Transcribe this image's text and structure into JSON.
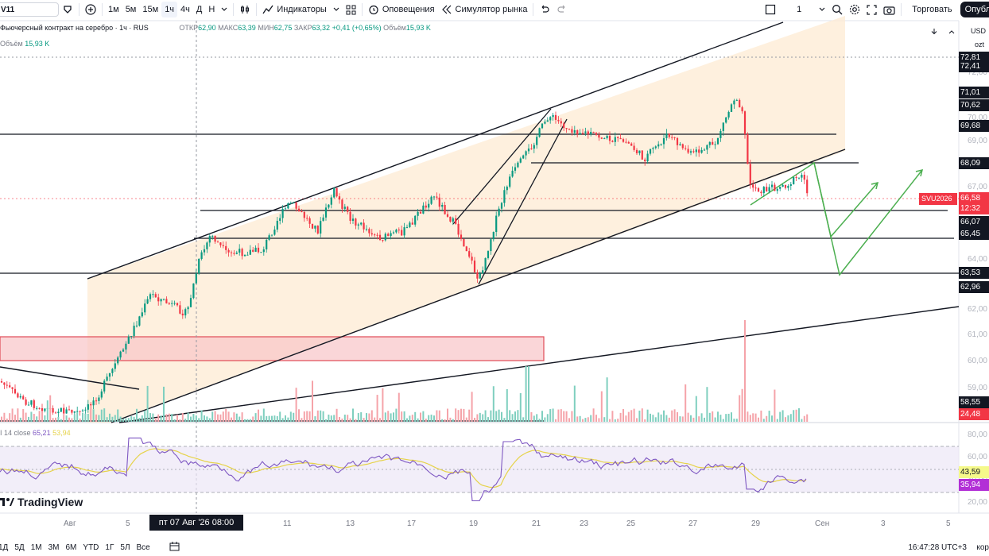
{
  "toolbar": {
    "symbol": "V11",
    "timeframes": [
      "1м",
      "5м",
      "15м",
      "1ч",
      "4ч",
      "Д",
      "Н"
    ],
    "active_timeframe": "1ч",
    "indicators_label": "Индикаторы",
    "alerts_label": "Оповещения",
    "simulator_label": "Симулятор рынка",
    "layout_count": "1",
    "trade_label": "Торговать",
    "publish_label": "Опубл"
  },
  "legend": {
    "title": "Фьючерсный контракт на серебро · 1ч · RUS",
    "open_label": "ОТКР",
    "open": "62,90",
    "high_label": "МАКС",
    "high": "63,39",
    "low_label": "МИН",
    "low": "62,75",
    "close_label": "ЗАКР",
    "close": "63,32",
    "change": "+0,41 (+0,65%)",
    "volume_label": "Объём",
    "volume": "15,93 K"
  },
  "volume_legend": {
    "label": "Объём",
    "value": "15,93 K"
  },
  "rsi_legend": {
    "label": "I 14 close",
    "v1": "65,21",
    "v2": "53,94"
  },
  "price_scale": {
    "currency": "USD",
    "unit": "ozt",
    "ticks": [
      "72,00",
      "70,00",
      "69,00",
      "67,00",
      "64,00",
      "62,00",
      "61,00",
      "60,00",
      "59,00"
    ],
    "labels": [
      {
        "text": "72,81",
        "style": "dark"
      },
      {
        "text": "72,41",
        "style": "dark"
      },
      {
        "text": "71,01",
        "style": "dark"
      },
      {
        "text": "70,62",
        "style": "dark"
      },
      {
        "text": "69,68",
        "style": "dark"
      },
      {
        "text": "68,09",
        "style": "dark"
      },
      {
        "text": "66,58",
        "style": "red"
      },
      {
        "text": "12:32",
        "style": "red"
      },
      {
        "text": "66,07",
        "style": "dark"
      },
      {
        "text": "65,45",
        "style": "dark"
      },
      {
        "text": "63,53",
        "style": "dark"
      },
      {
        "text": "62,96",
        "style": "dark"
      },
      {
        "text": "58,55",
        "style": "dark"
      },
      {
        "text": "24,48",
        "style": "red"
      }
    ],
    "symbol_tag": "SVU2026",
    "rsi_ticks": [
      "80,00",
      "60,00",
      "40,00",
      "20,00"
    ],
    "rsi_labels": [
      {
        "text": "43,59",
        "style": "yellow"
      },
      {
        "text": "35,94",
        "style": "purple"
      }
    ]
  },
  "time_axis": [
    "Авг",
    "5",
    "11",
    "13",
    "17",
    "19",
    "21",
    "23",
    "25",
    "27",
    "29",
    "Сен",
    "3",
    "5"
  ],
  "crosshair_date": "пт 07 Авг '26   08:00",
  "bottombar": {
    "ranges": [
      "1Д",
      "5Д",
      "1М",
      "3М",
      "6М",
      "YTD",
      "1Г",
      "5Л",
      "Все"
    ],
    "clock": "16:47:28 UTC+3",
    "corr": "кор"
  },
  "logo": "TradingView",
  "colors": {
    "up": "#089981",
    "down": "#f23645",
    "channel": "#fbe8d0",
    "zone": "#f7c1c5",
    "rsi_band": "#ede7f6",
    "rsi_line": "#7e57c2",
    "rsi_ma": "#e6d34a",
    "projection": "#4caf50"
  }
}
